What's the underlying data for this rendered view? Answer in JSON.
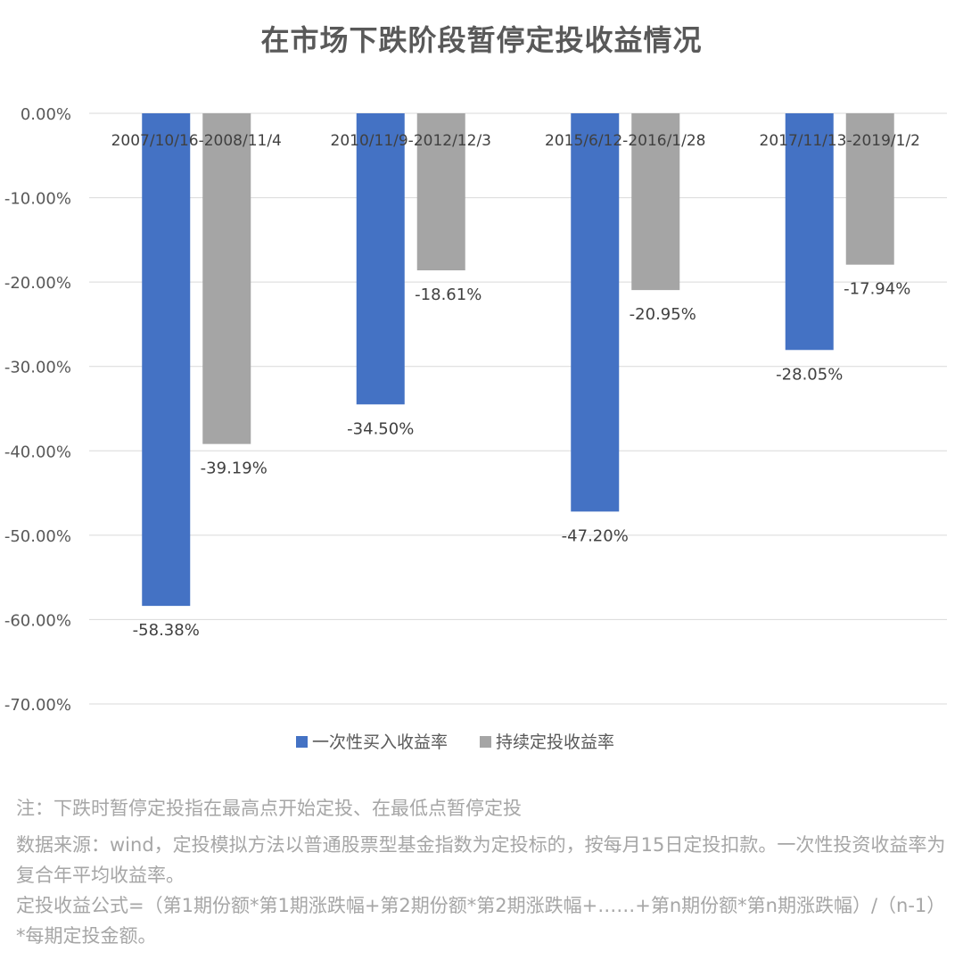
{
  "chart_data": {
    "type": "bar",
    "title": "在市场下跌阶段暂停定投收益情况",
    "categories": [
      "2007/10/16-2008/11/4",
      "2010/11/9-2012/12/3",
      "2015/6/12-2016/1/28",
      "2017/11/13-2019/1/2"
    ],
    "series": [
      {
        "name": "一次性买入收益率",
        "color": "#4472c4",
        "values": [
          -58.38,
          -34.5,
          -47.2,
          -28.05
        ]
      },
      {
        "name": "持续定投收益率",
        "color": "#a5a5a5",
        "values": [
          -39.19,
          -18.61,
          -20.95,
          -17.94
        ]
      }
    ],
    "ylim": [
      -70,
      0
    ],
    "yticks": [
      "0.00%",
      "-10.00%",
      "-20.00%",
      "-30.00%",
      "-40.00%",
      "-50.00%",
      "-60.00%",
      "-70.00%"
    ],
    "data_labels": [
      [
        "-58.38%",
        "-34.50%",
        "-47.20%",
        "-28.05%"
      ],
      [
        "-39.19%",
        "-18.61%",
        "-20.95%",
        "-17.94%"
      ]
    ],
    "grid": true,
    "legend_position": "bottom"
  },
  "notes": [
    "注：下跌时暂停定投指在最高点开始定投、在最低点暂停定投",
    "数据来源：wind，定投模拟方法以普通股票型基金指数为定投标的，按每月15日定投扣款。一次性投资收益率为复合年平均收益率。",
    "定投收益公式=（第1期份额*第1期涨跌幅+第2期份额*第2期涨跌幅+……+第n期份额*第n期涨跌幅）/（n-1）*每期定投金额。"
  ]
}
